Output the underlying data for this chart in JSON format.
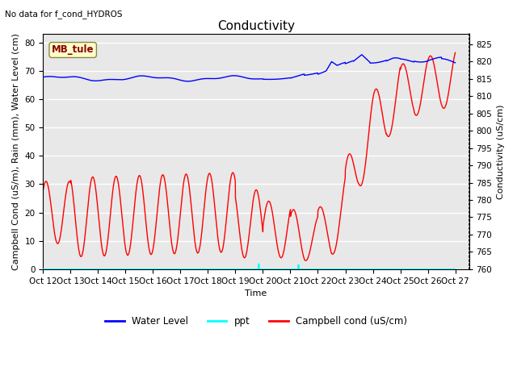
{
  "title": "Conductivity",
  "top_left_text": "No data for f_cond_HYDROS",
  "xlabel": "Time",
  "ylabel_left": "Campbell Cond (uS/m), Rain (mm), Water Level (cm)",
  "ylabel_right": "Conductivity (uS/cm)",
  "xlim": [
    0,
    15.5
  ],
  "ylim_left": [
    0,
    83
  ],
  "ylim_right": [
    760,
    828
  ],
  "yticks_left": [
    0,
    10,
    20,
    30,
    40,
    50,
    60,
    70,
    80
  ],
  "yticks_right": [
    760,
    765,
    770,
    775,
    780,
    785,
    790,
    795,
    800,
    805,
    810,
    815,
    820,
    825
  ],
  "xtick_labels": [
    "Oct 12",
    "Oct 13",
    "Oct 14",
    "Oct 15",
    "Oct 16",
    "Oct 17",
    "Oct 18",
    "Oct 19",
    "Oct 20",
    "Oct 21",
    "Oct 22",
    "Oct 23",
    "Oct 24",
    "Oct 25",
    "Oct 26",
    "Oct 27"
  ],
  "xtick_positions": [
    0,
    1,
    2,
    3,
    4,
    5,
    6,
    7,
    8,
    9,
    10,
    11,
    12,
    13,
    14,
    15
  ],
  "legend_labels": [
    "Water Level",
    "ppt",
    "Campbell cond (uS/cm)"
  ],
  "legend_colors": [
    "blue",
    "cyan",
    "red"
  ],
  "annotation_box_text": "MB_tule",
  "background_color": "#e8e8e8",
  "grid_color": "#ffffff",
  "title_fontsize": 11,
  "axis_fontsize": 8,
  "tick_fontsize": 7.5
}
